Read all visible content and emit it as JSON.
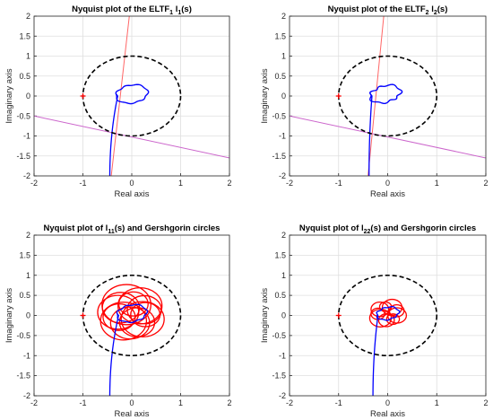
{
  "chart_data": [
    {
      "type": "line",
      "title": "Nyquist plot of the ELTF",
      "title_sub1": "1",
      "title_mid": " l",
      "title_sub2": "1",
      "title_end": "(s)",
      "xlabel": "Real axis",
      "ylabel": "Imaginary axis",
      "xlim": [
        -2,
        2
      ],
      "ylim": [
        -2,
        2
      ],
      "xticks": [
        "-2",
        "-1",
        "0",
        "1",
        "2"
      ],
      "yticks": [
        "-2",
        "-1.5",
        "-1",
        "-0.5",
        "0",
        "0.5",
        "1",
        "1.5",
        "2"
      ],
      "grid": true,
      "critical_point": {
        "x": -1,
        "y": 0,
        "marker": "+",
        "color": "#ff0000"
      },
      "unit_circle_dashed": {
        "center": [
          0,
          0
        ],
        "radius": 1,
        "color": "#000000"
      },
      "series": [
        {
          "style": "nyquist-locus",
          "color": "#0000ff",
          "tail_x": -0.45,
          "center": [
            0.0,
            0.05
          ],
          "radius": 0.32,
          "loops": 3,
          "spread": 0.03
        },
        {
          "style": "line",
          "color": "#ff6666",
          "points": [
            [
              -0.42,
              -2
            ],
            [
              -0.05,
              2
            ]
          ]
        },
        {
          "style": "line",
          "color": "#cc66cc",
          "points": [
            [
              -2,
              -0.5
            ],
            [
              2,
              -1.55
            ]
          ]
        }
      ]
    },
    {
      "type": "line",
      "title": "Nyquist plot of the ELTF",
      "title_sub1": "2",
      "title_mid": " l",
      "title_sub2": "2",
      "title_end": "(s)",
      "xlabel": "Real axis",
      "ylabel": "Imaginary axis",
      "xlim": [
        -2,
        2
      ],
      "ylim": [
        -2,
        2
      ],
      "xticks": [
        "-2",
        "-1",
        "0",
        "1",
        "2"
      ],
      "yticks": [
        "-2",
        "-1.5",
        "-1",
        "-0.5",
        "0",
        "0.5",
        "1",
        "1.5",
        "2"
      ],
      "grid": true,
      "critical_point": {
        "x": -1,
        "y": 0,
        "marker": "+",
        "color": "#ff0000"
      },
      "unit_circle_dashed": {
        "center": [
          0,
          0
        ],
        "radius": 1,
        "color": "#000000"
      },
      "series": [
        {
          "style": "nyquist-locus",
          "color": "#0000ff",
          "tail_x": -0.38,
          "center": [
            -0.05,
            0.05
          ],
          "radius": 0.3,
          "loops": 3,
          "spread": 0.05
        },
        {
          "style": "line",
          "color": "#ff6666",
          "points": [
            [
              -0.4,
              -2
            ],
            [
              -0.08,
              2
            ]
          ]
        },
        {
          "style": "line",
          "color": "#cc66cc",
          "points": [
            [
              -2,
              -0.5
            ],
            [
              2,
              -1.55
            ]
          ]
        }
      ]
    },
    {
      "type": "line",
      "title": "Nyquist plot of l",
      "title_sub1": "11",
      "title_mid": "",
      "title_sub2": "",
      "title_end": "(s) and Gershgorin circles",
      "xlabel": "Real axis",
      "ylabel": "Imaginary axis",
      "xlim": [
        -2,
        2
      ],
      "ylim": [
        -2,
        2
      ],
      "xticks": [
        "-2",
        "-1",
        "0",
        "1",
        "2"
      ],
      "yticks": [
        "-2",
        "-1.5",
        "-1",
        "-0.5",
        "0",
        "0.5",
        "1",
        "1.5",
        "2"
      ],
      "grid": true,
      "critical_point": {
        "x": -1,
        "y": 0,
        "marker": "+",
        "color": "#ff0000"
      },
      "unit_circle_dashed": {
        "center": [
          0,
          0
        ],
        "radius": 1,
        "color": "#000000"
      },
      "gershgorin": {
        "color": "#ff0000",
        "center": [
          0.0,
          0.05
        ],
        "orbit": 0.28,
        "radii": [
          0.35,
          0.45,
          0.3,
          0.5,
          0.38,
          0.42,
          0.33,
          0.47,
          0.4,
          0.36,
          0.44,
          0.3
        ]
      },
      "series": [
        {
          "style": "nyquist-locus",
          "color": "#0000ff",
          "tail_x": -0.45,
          "center": [
            0.0,
            0.05
          ],
          "radius": 0.3,
          "loops": 2,
          "spread": 0.03
        }
      ]
    },
    {
      "type": "line",
      "title": "Nyquist plot of l",
      "title_sub1": "22",
      "title_mid": "",
      "title_sub2": "",
      "title_end": "(s) and Gershgorin circles",
      "xlabel": "Real axis",
      "ylabel": "Imaginary axis",
      "xlim": [
        -2,
        2
      ],
      "ylim": [
        -2,
        2
      ],
      "xticks": [
        "-2",
        "-1",
        "0",
        "1",
        "2"
      ],
      "yticks": [
        "-2",
        "-1.5",
        "-1",
        "-0.5",
        "0",
        "0.5",
        "1",
        "1.5",
        "2"
      ],
      "grid": true,
      "critical_point": {
        "x": -1,
        "y": 0,
        "marker": "+",
        "color": "#ff0000"
      },
      "unit_circle_dashed": {
        "center": [
          0,
          0
        ],
        "radius": 1,
        "color": "#000000"
      },
      "gershgorin": {
        "color": "#ff0000",
        "center": [
          0.0,
          0.05
        ],
        "orbit": 0.2,
        "radii": [
          0.15,
          0.2,
          0.12,
          0.18,
          0.14,
          0.22,
          0.16,
          0.13,
          0.19
        ]
      },
      "series": [
        {
          "style": "nyquist-locus",
          "color": "#0000ff",
          "tail_x": -0.3,
          "center": [
            0.0,
            0.05
          ],
          "radius": 0.22,
          "loops": 2,
          "spread": 0.03
        }
      ]
    }
  ]
}
